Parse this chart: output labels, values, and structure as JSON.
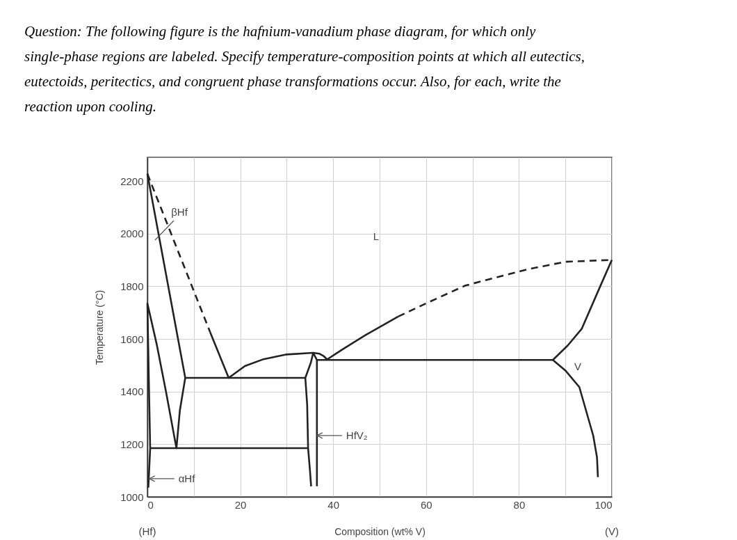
{
  "chart_data": {
    "type": "line",
    "title": "Question: The following figure is the hafnium-vanadium phase diagram, for which only single-phase regions are labeled. Specify temperature-composition points at which all eutectics, eutectoids, peritectics, and congruent phase transformations occur. Also, for each, write the reaction upon cooling.",
    "xlabel": "Composition (wt% V)",
    "ylabel": "Temperature (°C)",
    "xlim": [
      0,
      100
    ],
    "ylim": [
      1000,
      2290
    ],
    "xticks": [
      0,
      {
        "value": 10,
        "label": null
      },
      20,
      {
        "value": 30,
        "label": null
      },
      40,
      {
        "value": 50,
        "label": null
      },
      60,
      {
        "value": 70,
        "label": null
      },
      80,
      {
        "value": 90,
        "label": null
      },
      100
    ],
    "yticks": [
      1000,
      1200,
      1400,
      1600,
      1800,
      2000,
      2200
    ],
    "grid": true,
    "series": [
      {
        "color": "#222222",
        "line_style": "dashed",
        "x": [
          0,
          13.5
        ],
        "values": [
          2227,
          1626
        ]
      },
      {
        "color": "#222222",
        "x": [
          13.5,
          17.5,
          21,
          25,
          30,
          35.7,
          35.2,
          34,
          34.4,
          34.6,
          35,
          35.25
        ],
        "values": [
          1626,
          1452,
          1497,
          1523,
          1541,
          1547,
          1510,
          1452,
          1350,
          1185,
          1100,
          1040
        ]
      },
      {
        "color": "#222222",
        "x": [
          0,
          8.15,
          34
        ],
        "values": [
          2227,
          1452,
          1452
        ]
      },
      {
        "color": "#222222",
        "x": [
          0.2,
          0.6,
          0.3,
          0,
          2,
          4,
          6.25,
          7,
          8.15
        ],
        "values": [
          1035,
          1185,
          1450,
          1735,
          1580,
          1400,
          1185,
          1330,
          1452
        ]
      },
      {
        "color": "#222222",
        "x": [
          0.6,
          34.6
        ],
        "values": [
          1185,
          1185
        ]
      },
      {
        "color": "#222222",
        "x": [
          35.7,
          36.5,
          36.5
        ],
        "values": [
          1547,
          1520,
          1040
        ]
      },
      {
        "color": "#222222",
        "x": [
          35.7,
          37,
          38,
          38.7,
          42,
          47,
          54
        ],
        "values": [
          1547,
          1544,
          1534,
          1522,
          1560,
          1615,
          1685
        ]
      },
      {
        "color": "#222222",
        "x": [
          36.5,
          87.3
        ],
        "values": [
          1520,
          1520
        ]
      },
      {
        "color": "#222222",
        "line_style": "dashed",
        "x": [
          54,
          60,
          68.5,
          82,
          90,
          100
        ],
        "values": [
          1685,
          1735,
          1803,
          1865,
          1893,
          1900
        ]
      },
      {
        "color": "#222222",
        "x": [
          100,
          97.5,
          93.5,
          90.5,
          87.3,
          90,
          93,
          96,
          96.8,
          97
        ],
        "values": [
          1900,
          1800,
          1638,
          1575,
          1520,
          1480,
          1417,
          1232,
          1150,
          1075
        ]
      }
    ],
    "annotations": [
      "βHf",
      {
        "text": "αHf",
        "x": 0.4,
        "y": 1069
      },
      {
        "text": "HfV₂",
        "x": 36.5,
        "y": 1233
      },
      "L",
      "V",
      "(Hf)",
      "(V)"
    ]
  }
}
